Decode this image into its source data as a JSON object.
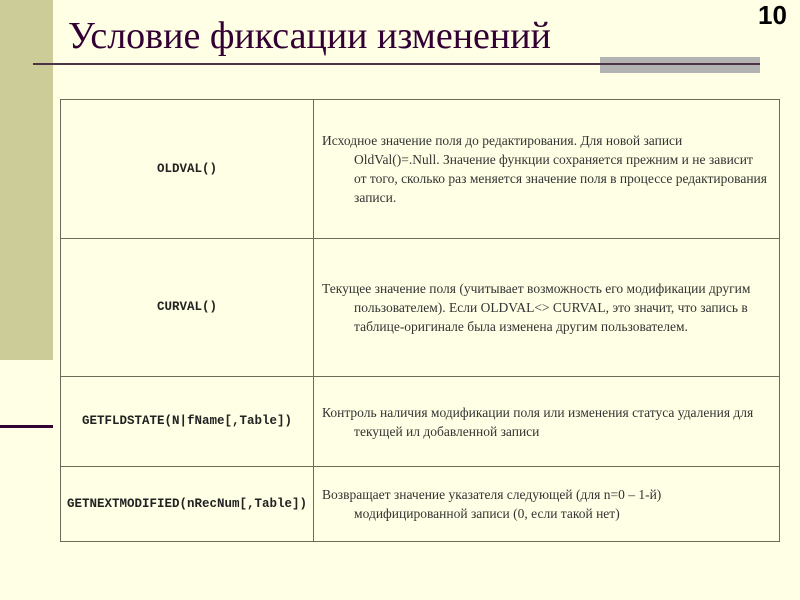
{
  "slide": {
    "title": "Условие фиксации изменений",
    "number": "10",
    "colors": {
      "background": "#ffffe5",
      "sidebar": "#cccc99",
      "title": "#330033"
    }
  },
  "table": {
    "rows": [
      {
        "function": "OLDVAL()",
        "description": "Исходное значение поля до редактирования. Для новой записи OldVal()=.Null. Значение функции сохраняется прежним и не зависит от того, сколько раз меняется значение поля в процессе редактирования записи."
      },
      {
        "function": "CURVAL()",
        "description": "Текущее значение поля (учитывает возможность его модификации другим пользователем). Если OLDVAL<> CURVAL, это значит, что запись в таблице-оригинале была изменена другим пользователем."
      },
      {
        "function": "GETFLDSTATE(N|fName[,Table])",
        "description": "Контроль наличия модификации поля или изменения статуса удаления для текущей ил добавленной записи"
      },
      {
        "function": "GETNEXTMODIFIED(nRecNum[,Table])",
        "description": "Возвращает значение указателя следующей (для n=0 – 1-й) модифицированной записи (0, если такой нет)"
      }
    ]
  }
}
